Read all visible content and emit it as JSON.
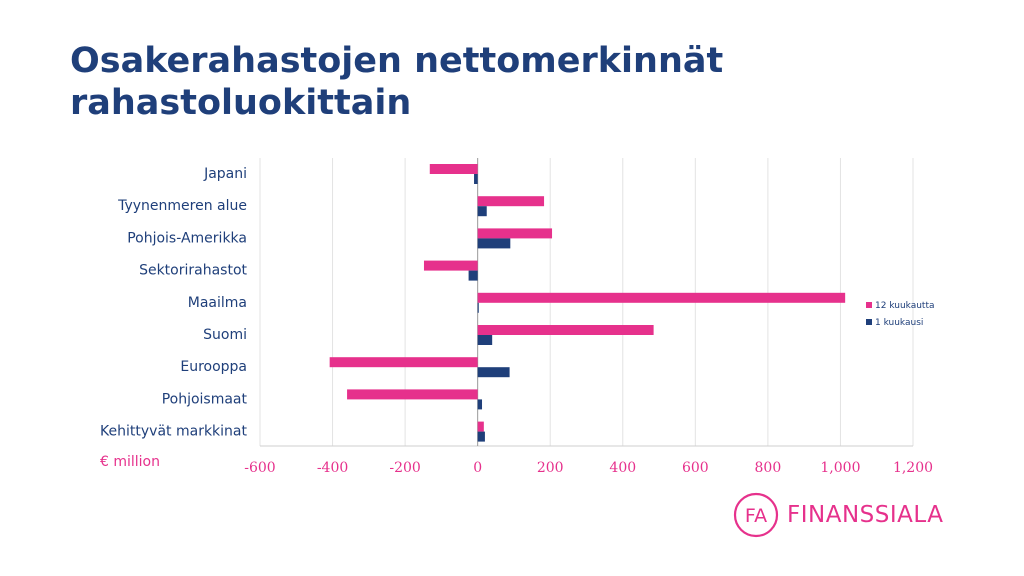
{
  "slide": {
    "title": "Osakerahastojen nettomerkinnät rahastoluokittain"
  },
  "logo": {
    "text": "FINANSSIALA",
    "mark": "FA"
  },
  "colors": {
    "title": "#1f3f7a",
    "series_12m": "#e6318c",
    "series_1m": "#1f3f7a",
    "axis_ticks": "#e6318c",
    "gridline": "#e3e3e3"
  },
  "chart_data": {
    "type": "bar",
    "orientation": "horizontal",
    "unit_label": "€ million",
    "categories": [
      "Japani",
      "Tyynenmeren alue",
      "Pohjois-Amerikka",
      "Sektorirahastot",
      "Maailma",
      "Suomi",
      "Eurooppa",
      "Pohjoismaat",
      "Kehittyvät markkinat"
    ],
    "series": [
      {
        "name": "12 kuukautta",
        "values": [
          -132,
          183,
          205,
          -148,
          1013,
          485,
          -408,
          -360,
          17
        ]
      },
      {
        "name": "1 kuukausi",
        "values": [
          -10,
          25,
          90,
          -25,
          3,
          40,
          88,
          12,
          20
        ]
      }
    ],
    "xlim": [
      -600,
      1200
    ],
    "xticks": [
      -600,
      -400,
      -200,
      0,
      200,
      400,
      600,
      800,
      1000,
      1200
    ],
    "xtick_labels": [
      "-600",
      "-400",
      "-200",
      "0",
      "200",
      "400",
      "600",
      "800",
      "1,000",
      "1,200"
    ],
    "grid": true,
    "legend_position": "right"
  }
}
